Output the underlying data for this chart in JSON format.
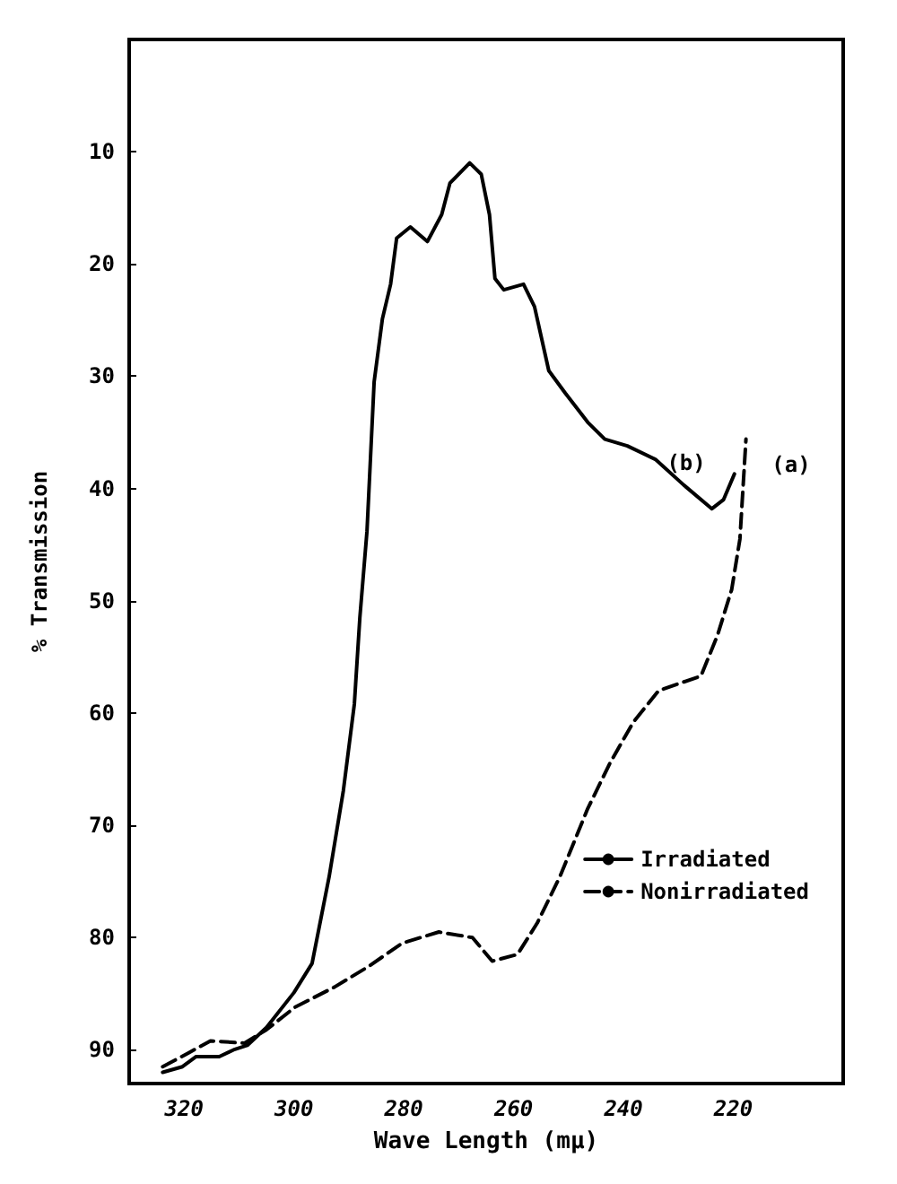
{
  "chart_data": {
    "type": "line",
    "xlabel": "Wave Length (mμ)",
    "ylabel": "% Transmission",
    "xlim": [
      330,
      200
    ],
    "xticks": [
      320,
      300,
      280,
      260,
      240,
      220
    ],
    "ylim": [
      93,
      0
    ],
    "yticks": [
      10,
      20,
      30,
      40,
      50,
      60,
      70,
      80,
      90
    ],
    "grid": false,
    "legend": "right",
    "marker": "none",
    "annotations": [
      "(b)",
      "(a)"
    ],
    "series": [
      {
        "name": "Irradiated",
        "color": "#000000",
        "line_style": "solid",
        "x": [
          323.9,
          320.3,
          317.8,
          313.6,
          311,
          308.5,
          305,
          300,
          296.7,
          293.6,
          291,
          289,
          288,
          286.7,
          285.4,
          283.9,
          282.4,
          281.3,
          278.8,
          275.7,
          273.1,
          271.6,
          268,
          265.9,
          264.4,
          263.4,
          261.8,
          258.2,
          256.2,
          253.6,
          250.6,
          246.5,
          243.4,
          239.3,
          234.2,
          229,
          223.9,
          221.8,
          219.8
        ],
        "values": [
          92,
          91.5,
          90.6,
          90.6,
          90,
          89.6,
          88,
          84.9,
          82.3,
          74.6,
          66.9,
          59.2,
          51.5,
          43.8,
          30.5,
          24.9,
          21.8,
          17.7,
          16.7,
          18,
          15.6,
          12.8,
          11,
          12,
          15.6,
          21.3,
          22.3,
          21.8,
          23.8,
          29.5,
          31.5,
          34.1,
          35.6,
          36.2,
          37.4,
          39.7,
          41.8,
          41,
          38.7
        ]
      },
      {
        "name": "Nonirradiated",
        "color": "#000000",
        "line_style": "dashed",
        "x": [
          323.9,
          319.3,
          315.2,
          309,
          305,
          299.8,
          292.6,
          286.5,
          280.3,
          273.6,
          267.5,
          263.9,
          259.3,
          255.7,
          251.6,
          246.5,
          242.4,
          238.2,
          233.6,
          225.9,
          222.9,
          220.3,
          218.8,
          217.7
        ],
        "values": [
          91.5,
          90.3,
          89.2,
          89.4,
          88.2,
          86.2,
          84.4,
          82.6,
          80.5,
          79.5,
          80,
          82.1,
          81.5,
          78.7,
          74.6,
          68.5,
          64.4,
          60.8,
          58,
          56.7,
          53.1,
          49,
          44.5,
          35.6
        ]
      }
    ]
  }
}
